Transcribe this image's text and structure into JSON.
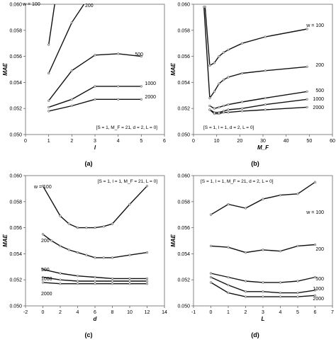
{
  "colors": {
    "line": "#111111",
    "marker_fill": "#d9d9d9",
    "axis": "#666666",
    "text": "#000000"
  },
  "panels": {
    "a": {
      "caption": "(a)",
      "parameters": "[S = 1, M_F = 21, d = 2, L = 0]"
    },
    "b": {
      "caption": "(b)",
      "parameters": "[S = 1, l = 1, d = 2, L = 0]"
    },
    "c": {
      "caption": "(c)",
      "parameters": "[S = 1, l = 1, M_F = 21, L = 0]"
    },
    "d": {
      "caption": "(d)",
      "parameters": "[S = 1, l = 1, M_F = 21, d = 2, L = 0]"
    }
  },
  "chart_data": [
    {
      "type": "line",
      "panel": "a",
      "xlabel": "l",
      "ylabel": "MAE",
      "xlim": [
        0,
        6
      ],
      "ylim": [
        0.05,
        0.06
      ],
      "xticks": [
        0,
        1,
        2,
        3,
        4,
        5,
        6
      ],
      "yticks": [
        0.05,
        0.052,
        0.054,
        0.056,
        0.058,
        0.06
      ],
      "xtick_labels": [
        "0",
        "1",
        "2",
        "3",
        "4",
        "5",
        "6"
      ],
      "ytick_labels": [
        "0.050",
        "0.052",
        "0.054",
        "0.056",
        "0.058",
        "0.060"
      ],
      "annotation": "[S = 1, M_F = 21, d = 2, L = 0]",
      "series": [
        {
          "name": "w = 100",
          "x": [
            1,
            1.3
          ],
          "y": [
            0.0569,
            0.0605
          ]
        },
        {
          "name": "200",
          "x": [
            1,
            2,
            2.6
          ],
          "y": [
            0.0547,
            0.0586,
            0.0602
          ]
        },
        {
          "name": "500",
          "x": [
            1,
            2,
            3,
            4,
            5
          ],
          "y": [
            0.0526,
            0.0549,
            0.0561,
            0.0562,
            0.056
          ]
        },
        {
          "name": "1000",
          "x": [
            1,
            2,
            3,
            4,
            5
          ],
          "y": [
            0.0521,
            0.0527,
            0.0537,
            0.0537,
            0.0537
          ]
        },
        {
          "name": "2000",
          "x": [
            1,
            2,
            3,
            4,
            5
          ],
          "y": [
            0.0518,
            0.0522,
            0.0527,
            0.0527,
            0.0527
          ]
        }
      ]
    },
    {
      "type": "line",
      "panel": "b",
      "xlabel": "M_F",
      "ylabel": "MAE",
      "xlim": [
        0,
        60
      ],
      "ylim": [
        0.05,
        0.06
      ],
      "xticks": [
        0,
        10,
        20,
        30,
        40,
        50,
        60
      ],
      "yticks": [
        0.05,
        0.052,
        0.054,
        0.056,
        0.058,
        0.06
      ],
      "xtick_labels": [
        "0",
        "10",
        "20",
        "30",
        "40",
        "50",
        "60"
      ],
      "ytick_labels": [
        "0.050",
        "0.052",
        "0.054",
        "0.056",
        "0.058",
        "0.060"
      ],
      "annotation": "[S = 1, l = 1, d = 2, L = 0]",
      "series": [
        {
          "name": "w = 100",
          "x": [
            5,
            7,
            9,
            11,
            13,
            15,
            21,
            31,
            49
          ],
          "y": [
            0.0598,
            0.0553,
            0.0555,
            0.056,
            0.0563,
            0.0565,
            0.057,
            0.0575,
            0.0581
          ]
        },
        {
          "name": "200",
          "x": [
            4.5,
            7,
            9,
            11,
            13,
            15,
            21,
            31,
            49
          ],
          "y": [
            0.0598,
            0.0528,
            0.0533,
            0.0539,
            0.0542,
            0.0544,
            0.0547,
            0.0549,
            0.0552
          ]
        },
        {
          "name": "500",
          "x": [
            7,
            9,
            11,
            13,
            15,
            21,
            31,
            49
          ],
          "y": [
            0.0522,
            0.052,
            0.0521,
            0.0522,
            0.0523,
            0.0525,
            0.0528,
            0.0533
          ]
        },
        {
          "name": "1000",
          "x": [
            7,
            9,
            11,
            13,
            15,
            21,
            31,
            49
          ],
          "y": [
            0.0519,
            0.0517,
            0.0517,
            0.0518,
            0.0519,
            0.052,
            0.0523,
            0.0527
          ]
        },
        {
          "name": "2000",
          "x": [
            7,
            9,
            11,
            13,
            15,
            21,
            31,
            49
          ],
          "y": [
            0.0519,
            0.0516,
            0.0516,
            0.0517,
            0.0517,
            0.0518,
            0.0519,
            0.0521
          ]
        }
      ]
    },
    {
      "type": "line",
      "panel": "c",
      "xlabel": "d",
      "ylabel": "MAE",
      "xlim": [
        -2,
        14
      ],
      "ylim": [
        0.05,
        0.06
      ],
      "xticks": [
        -2,
        0,
        2,
        4,
        6,
        8,
        10,
        12,
        14
      ],
      "yticks": [
        0.05,
        0.052,
        0.054,
        0.056,
        0.058,
        0.06
      ],
      "xtick_labels": [
        "-2",
        "0",
        "2",
        "4",
        "6",
        "8",
        "10",
        "12",
        "14"
      ],
      "ytick_labels": [
        "0.050",
        "0.052",
        "0.054",
        "0.056",
        "0.058",
        "0.060"
      ],
      "annotation": "[S = 1, l = 1, M_F = 21, L = 0]",
      "series": [
        {
          "name": "w = 100",
          "x": [
            0,
            2,
            3,
            4,
            5,
            6,
            7,
            8,
            10,
            12
          ],
          "y": [
            0.0592,
            0.0569,
            0.0563,
            0.056,
            0.056,
            0.056,
            0.0561,
            0.0563,
            0.0578,
            0.0592
          ]
        },
        {
          "name": "200",
          "x": [
            0,
            1,
            2,
            3,
            4,
            5,
            6,
            7,
            8,
            10,
            12
          ],
          "y": [
            0.0555,
            0.055,
            0.0546,
            0.0543,
            0.0541,
            0.0539,
            0.0537,
            0.0537,
            0.0537,
            0.0539,
            0.0541
          ]
        },
        {
          "name": "500",
          "x": [
            0,
            2,
            4,
            6,
            8,
            10,
            12
          ],
          "y": [
            0.0528,
            0.0525,
            0.0523,
            0.0522,
            0.0521,
            0.0521,
            0.0521
          ]
        },
        {
          "name": "1000",
          "x": [
            0,
            2,
            4,
            6,
            8,
            10,
            12
          ],
          "y": [
            0.0522,
            0.052,
            0.0519,
            0.0519,
            0.0519,
            0.0519,
            0.0519
          ]
        },
        {
          "name": "2000",
          "x": [
            0,
            2,
            4,
            6,
            8,
            10,
            12
          ],
          "y": [
            0.0518,
            0.0517,
            0.0517,
            0.0517,
            0.0517,
            0.0517,
            0.0517
          ]
        }
      ]
    },
    {
      "type": "line",
      "panel": "d",
      "xlabel": "L",
      "ylabel": "MAE",
      "xlim": [
        -1,
        7
      ],
      "ylim": [
        0.05,
        0.06
      ],
      "xticks": [
        -1,
        0,
        1,
        2,
        3,
        4,
        5,
        6,
        7
      ],
      "yticks": [
        0.05,
        0.052,
        0.054,
        0.056,
        0.058,
        0.06
      ],
      "xtick_labels": [
        "-1",
        "0",
        "1",
        "2",
        "3",
        "4",
        "5",
        "6",
        "7"
      ],
      "ytick_labels": [
        "0.050",
        "0.052",
        "0.054",
        "0.056",
        "0.058",
        "0.060"
      ],
      "annotation": "[S = 1, l = 1, M_F = 21, d = 2, L = 0]",
      "series": [
        {
          "name": "w = 100",
          "x": [
            0,
            1,
            2,
            3,
            4,
            5,
            6
          ],
          "y": [
            0.057,
            0.0578,
            0.0575,
            0.0582,
            0.0585,
            0.0586,
            0.0595
          ]
        },
        {
          "name": "200",
          "x": [
            0,
            1,
            2,
            3,
            4,
            5,
            6
          ],
          "y": [
            0.0546,
            0.0545,
            0.0541,
            0.0543,
            0.0542,
            0.0546,
            0.0547
          ]
        },
        {
          "name": "500",
          "x": [
            0,
            1,
            2,
            3,
            4,
            5,
            6
          ],
          "y": [
            0.0525,
            0.0522,
            0.0519,
            0.0518,
            0.0518,
            0.0519,
            0.0522
          ]
        },
        {
          "name": "1000",
          "x": [
            0,
            1,
            2,
            3,
            4,
            5,
            6
          ],
          "y": [
            0.0522,
            0.0516,
            0.0511,
            0.0511,
            0.051,
            0.051,
            0.0512
          ]
        },
        {
          "name": "2000",
          "x": [
            0,
            1,
            2,
            3,
            4,
            5,
            6
          ],
          "y": [
            0.0518,
            0.051,
            0.0507,
            0.0507,
            0.0507,
            0.0507,
            0.0508
          ]
        }
      ]
    }
  ]
}
